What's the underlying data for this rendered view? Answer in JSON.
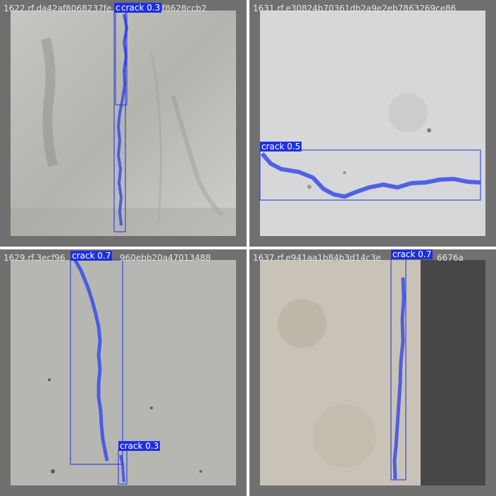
{
  "tiles": [
    {
      "title": "1622.rf.da42af8068237fe",
      "title_tail": "f8628ccb2",
      "boxes": [
        {
          "label": "crack 0.3"
        },
        {
          "label": "c"
        }
      ]
    },
    {
      "title": "1631.rf.e30824b70361db2a9e2eb7863269ce86",
      "boxes": [
        {
          "label": "crack 0.5"
        }
      ]
    },
    {
      "title": "1629.rf.3ecf96",
      "title_tail": "960ebb20a47013488",
      "boxes": [
        {
          "label": "crack 0.7"
        },
        {
          "label": "crack 0.3"
        }
      ]
    },
    {
      "title": "1637.rf.e941aa1b84b3d14c3e",
      "title_tail": "6676a",
      "boxes": [
        {
          "label": "crack 0.7"
        }
      ]
    }
  ],
  "colors": {
    "background": "#707070",
    "box": "#1f2fe0",
    "mask": "#3a4ce8"
  }
}
